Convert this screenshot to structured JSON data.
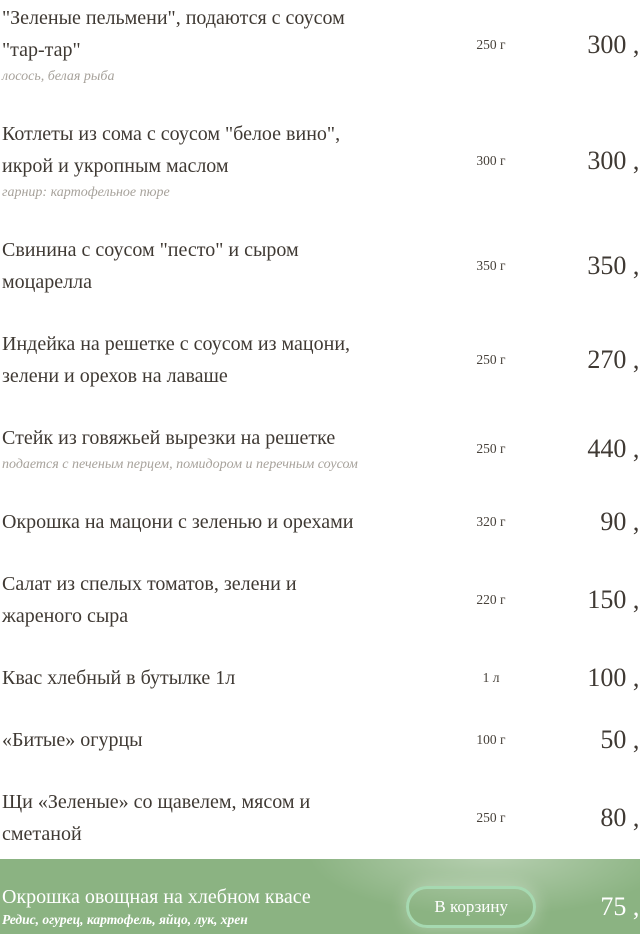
{
  "menu": {
    "items": [
      {
        "title": "\"Зеленые пельмени\", подаются с соусом\n\"тар-тар\"",
        "note": "лосось, белая рыба",
        "weight": "250 г",
        "price": "300 ,-"
      },
      {
        "title": "Котлеты из сома с соусом \"белое вино\",\nикрой и укропным маслом",
        "note": "гарнир: картофельное пюре",
        "weight": "300 г",
        "price": "300 ,-"
      },
      {
        "title": "Свинина с соусом \"песто\" и сыром\nмоцарелла",
        "note": "",
        "weight": "350 г",
        "price": "350 ,-"
      },
      {
        "title": "Индейка на решетке с соусом из мацони,\nзелени и орехов на лаваше",
        "note": "",
        "weight": "250 г",
        "price": "270 ,-"
      },
      {
        "title": "Стейк из говяжьей вырезки на решетке",
        "note": "подается с печеным перцем, помидором и перечным соусом",
        "weight": "250 г",
        "price": "440 ,-"
      },
      {
        "title": "Окрошка на мацони с зеленью и орехами",
        "note": "",
        "weight": "320 г",
        "price": "90 ,-"
      },
      {
        "title": "Салат из спелых томатов, зелени и\nжареного сыра",
        "note": "",
        "weight": "220 г",
        "price": "150 ,-"
      },
      {
        "title": "Квас хлебный в бутылке 1л",
        "note": "",
        "weight": "1 л",
        "price": "100 ,-"
      },
      {
        "title": "«Битые» огурцы",
        "note": "",
        "weight": "100 г",
        "price": "50 ,-"
      },
      {
        "title": "Щи «Зеленые» со щавелем, мясом и\nсметаной",
        "note": "",
        "weight": "250 г",
        "price": "80 ,-"
      }
    ],
    "highlighted_item": {
      "title": "Окрошка овощная на хлебном квасе",
      "note": "Редис, огурец, картофель, яйцо, лук, хрен",
      "price": "75 ,-",
      "button_label": "В корзину"
    },
    "colors": {
      "title_text": "#3f3933",
      "note_text": "#a7a29b",
      "highlight_bg": "#8bb382",
      "button_border": "#a6d9b1",
      "highlight_text": "#ffffff"
    }
  }
}
